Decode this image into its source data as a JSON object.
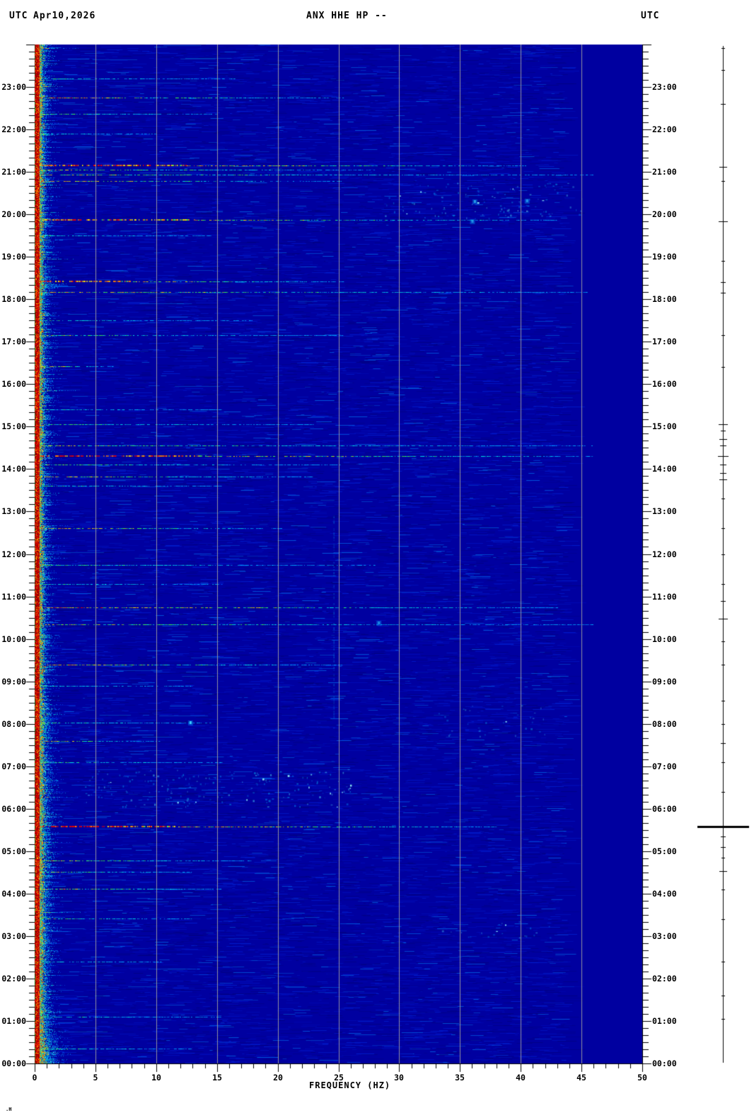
{
  "header": {
    "utc_left": "UTC",
    "date": "Apr10,2026",
    "station_title": "ANX HHE HP --",
    "utc_right": "UTC"
  },
  "x_axis": {
    "label": "FREQUENCY (HZ)",
    "tick_labels": [
      "0",
      "5",
      "10",
      "15",
      "20",
      "25",
      "30",
      "35",
      "40",
      "45",
      "50"
    ]
  },
  "y_axis_left": {
    "tick_labels": [
      "23:00",
      "22:00",
      "21:00",
      "20:00",
      "19:00",
      "18:00",
      "17:00",
      "16:00",
      "15:00",
      "14:00",
      "13:00",
      "12:00",
      "11:00",
      "10:00",
      "09:00",
      "08:00",
      "07:00",
      "06:00",
      "05:00",
      "04:00",
      "03:00",
      "02:00",
      "01:00",
      "00:00"
    ]
  },
  "y_axis_right": {
    "tick_labels": [
      "23:00",
      "22:00",
      "21:00",
      "20:00",
      "19:00",
      "18:00",
      "17:00",
      "16:00",
      "15:00",
      "14:00",
      "13:00",
      "12:00",
      "11:00",
      "10:00",
      "09:00",
      "08:00",
      "07:00",
      "06:00",
      "05:00",
      "04:00",
      "03:00",
      "02:00",
      "01:00",
      "00:00"
    ]
  },
  "corner_mark": ".H",
  "chart_data": {
    "type": "heatmap",
    "subtype": "seismic-spectrogram",
    "title": "ANX HHE HP --",
    "date": "Apr10,2026",
    "timezone": "UTC",
    "xlabel": "FREQUENCY (HZ)",
    "x_range_hz": [
      0,
      50
    ],
    "x_major_tick_step_hz": 5,
    "x_minor_tick_step_hz": 1,
    "y_range_hours": [
      0,
      24
    ],
    "y_major_tick_step_min": 60,
    "y_minor_tick_step_min": 10,
    "grid": "vertical gray lines every 5 Hz",
    "background": "#0000A0",
    "gridline_color": "#A0A0A0",
    "palette": [
      "#000082",
      "#0000A0",
      "#0050FF",
      "#00AAFF",
      "#00E6E6",
      "#3CFF50",
      "#FFEB00",
      "#FF8000",
      "#F00000",
      "#8B0000"
    ],
    "low_freq_band": "persistent saturated red/orange energy 0-1 Hz with cyan speckle decaying to ~3 Hz for all 24 hours",
    "quiet_zone": "flat featureless dark blue above ~45.5 Hz",
    "streak_events": [
      {
        "t": 23.2,
        "reach": 0.32,
        "s": 0.45
      },
      {
        "t": 22.75,
        "reach": 0.5,
        "s": 0.8
      },
      {
        "t": 22.37,
        "reach": 0.3,
        "s": 0.55
      },
      {
        "t": 21.9,
        "reach": 0.2,
        "s": 0.4
      },
      {
        "t": 21.15,
        "reach": 0.8,
        "s": 0.95
      },
      {
        "t": 21.05,
        "reach": 0.55,
        "s": 0.7
      },
      {
        "t": 20.93,
        "reach": 0.95,
        "s": 0.6
      },
      {
        "t": 20.78,
        "reach": 0.5,
        "s": 0.75
      },
      {
        "t": 19.87,
        "reach": 0.85,
        "s": 0.85
      },
      {
        "t": 19.5,
        "reach": 0.28,
        "s": 0.45
      },
      {
        "t": 18.42,
        "reach": 0.5,
        "s": 0.9
      },
      {
        "t": 18.17,
        "reach": 0.9,
        "s": 0.7
      },
      {
        "t": 17.5,
        "reach": 0.35,
        "s": 0.45
      },
      {
        "t": 17.15,
        "reach": 0.5,
        "s": 0.55
      },
      {
        "t": 16.42,
        "reach": 0.12,
        "s": 0.75
      },
      {
        "t": 15.4,
        "reach": 0.3,
        "s": 0.45
      },
      {
        "t": 15.05,
        "reach": 0.45,
        "s": 0.5
      },
      {
        "t": 14.55,
        "reach": 1.0,
        "s": 0.6
      },
      {
        "t": 14.3,
        "reach": 1.0,
        "s": 0.95
      },
      {
        "t": 14.1,
        "reach": 0.5,
        "s": 0.55
      },
      {
        "t": 13.82,
        "reach": 0.45,
        "s": 0.7
      },
      {
        "t": 13.6,
        "reach": 0.3,
        "s": 0.5
      },
      {
        "t": 12.6,
        "reach": 0.4,
        "s": 0.75
      },
      {
        "t": 11.75,
        "reach": 0.55,
        "s": 0.5
      },
      {
        "t": 11.3,
        "reach": 0.3,
        "s": 0.45
      },
      {
        "t": 10.75,
        "reach": 0.85,
        "s": 0.8
      },
      {
        "t": 10.35,
        "reach": 1.0,
        "s": 0.6
      },
      {
        "t": 9.4,
        "reach": 0.5,
        "s": 0.7
      },
      {
        "t": 8.9,
        "reach": 0.25,
        "s": 0.45
      },
      {
        "t": 8.02,
        "reach": 0.28,
        "s": 0.5
      },
      {
        "t": 7.6,
        "reach": 0.2,
        "s": 0.7
      },
      {
        "t": 7.1,
        "reach": 0.3,
        "s": 0.5
      },
      {
        "t": 5.58,
        "reach": 0.75,
        "s": 1.0
      },
      {
        "t": 4.78,
        "reach": 0.35,
        "s": 0.7
      },
      {
        "t": 4.52,
        "reach": 0.25,
        "s": 0.6
      },
      {
        "t": 4.12,
        "reach": 0.3,
        "s": 0.7
      },
      {
        "t": 3.42,
        "reach": 0.25,
        "s": 0.6
      },
      {
        "t": 2.4,
        "reach": 0.2,
        "s": 0.45
      },
      {
        "t": 1.1,
        "reach": 0.3,
        "s": 0.5
      },
      {
        "t": 0.35,
        "reach": 0.25,
        "s": 0.5
      }
    ],
    "diffuse_clusters": [
      {
        "t0": 6.05,
        "t1": 6.95,
        "f0": 4,
        "f1": 26,
        "s": 0.5
      },
      {
        "t0": 19.9,
        "t1": 20.75,
        "f0": 28,
        "f1": 45,
        "s": 0.45
      },
      {
        "t0": 2.95,
        "t1": 3.35,
        "f0": 33,
        "f1": 43,
        "s": 0.3
      },
      {
        "t0": 7.7,
        "t1": 8.5,
        "f0": 33,
        "f1": 42,
        "s": 0.25
      }
    ],
    "vertical_features": [
      {
        "f": 24.6,
        "t0": 7.9,
        "t1": 12.9,
        "s": 0.35
      }
    ],
    "bright_dots": [
      {
        "t": 8.02,
        "f": 12.8,
        "s": 0.95
      },
      {
        "t": 20.3,
        "f": 36.2,
        "s": 0.6
      },
      {
        "t": 20.32,
        "f": 40.5,
        "s": 0.55
      },
      {
        "t": 19.83,
        "f": 36.0,
        "s": 0.5
      },
      {
        "t": 10.38,
        "f": 28.3,
        "s": 0.5
      }
    ],
    "amplitude_trace_events": [
      {
        "t": 23.92,
        "w": 2
      },
      {
        "t": 23.4,
        "w": 2
      },
      {
        "t": 22.6,
        "w": 3
      },
      {
        "t": 21.12,
        "w": 5
      },
      {
        "t": 20.78,
        "w": 2
      },
      {
        "t": 19.84,
        "w": 6
      },
      {
        "t": 18.9,
        "w": 2
      },
      {
        "t": 18.4,
        "w": 3
      },
      {
        "t": 18.15,
        "w": 3
      },
      {
        "t": 17.15,
        "w": 2
      },
      {
        "t": 16.4,
        "w": 2
      },
      {
        "t": 15.05,
        "w": 6
      },
      {
        "t": 14.9,
        "w": 3
      },
      {
        "t": 14.71,
        "w": 5
      },
      {
        "t": 14.55,
        "w": 4
      },
      {
        "t": 14.3,
        "w": 7
      },
      {
        "t": 14.1,
        "w": 4
      },
      {
        "t": 13.9,
        "w": 4
      },
      {
        "t": 13.75,
        "w": 5
      },
      {
        "t": 13.3,
        "w": 2
      },
      {
        "t": 12.6,
        "w": 2
      },
      {
        "t": 12.0,
        "w": 2
      },
      {
        "t": 11.3,
        "w": 2
      },
      {
        "t": 10.89,
        "w": 3
      },
      {
        "t": 10.47,
        "w": 6
      },
      {
        "t": 9.95,
        "w": 2
      },
      {
        "t": 9.4,
        "w": 2
      },
      {
        "t": 8.55,
        "w": 2
      },
      {
        "t": 8.0,
        "w": 2
      },
      {
        "t": 7.55,
        "w": 3
      },
      {
        "t": 7.1,
        "w": 2
      },
      {
        "t": 6.4,
        "w": 2
      },
      {
        "t": 5.58,
        "w": 36,
        "big": true
      },
      {
        "t": 5.35,
        "w": 3
      },
      {
        "t": 5.1,
        "w": 3
      },
      {
        "t": 4.85,
        "w": 2
      },
      {
        "t": 4.53,
        "w": 5
      },
      {
        "t": 4.1,
        "w": 2
      },
      {
        "t": 3.4,
        "w": 2
      },
      {
        "t": 2.4,
        "w": 2
      },
      {
        "t": 1.6,
        "w": 2
      },
      {
        "t": 1.05,
        "w": 2
      }
    ]
  }
}
